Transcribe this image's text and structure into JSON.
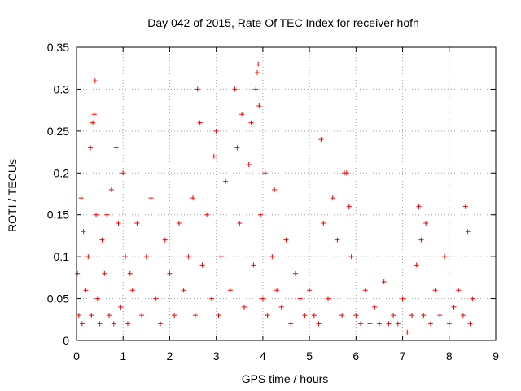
{
  "chart_data": {
    "type": "scatter",
    "title": "Day 042 of 2015, Rate Of TEC Index for receiver hofn",
    "xlabel": "GPS time / hours",
    "ylabel": "ROTI / TECUs",
    "xlim": [
      0,
      9
    ],
    "ylim": [
      0,
      0.35
    ],
    "xticks": [
      "0",
      "1",
      "2",
      "3",
      "4",
      "5",
      "6",
      "7",
      "8",
      "9"
    ],
    "yticks": [
      "0",
      "0.05",
      "0.1",
      "0.15",
      "0.2",
      "0.25",
      "0.3",
      "0.35"
    ],
    "grid": true,
    "marker": "+",
    "color": "#ff0000",
    "series": [
      {
        "name": "ROTI",
        "x": [
          0.02,
          0.05,
          0.1,
          0.12,
          0.15,
          0.2,
          0.25,
          0.3,
          0.32,
          0.35,
          0.38,
          0.4,
          0.42,
          0.45,
          0.5,
          0.55,
          0.6,
          0.65,
          0.7,
          0.75,
          0.8,
          0.85,
          0.9,
          0.95,
          1.0,
          1.05,
          1.1,
          1.15,
          1.2,
          1.3,
          1.4,
          1.5,
          1.6,
          1.7,
          1.8,
          1.9,
          2.0,
          2.1,
          2.2,
          2.3,
          2.4,
          2.5,
          2.55,
          2.6,
          2.65,
          2.7,
          2.8,
          2.9,
          2.95,
          3.0,
          3.05,
          3.1,
          3.2,
          3.3,
          3.4,
          3.45,
          3.5,
          3.55,
          3.6,
          3.7,
          3.75,
          3.8,
          3.85,
          3.88,
          3.9,
          3.92,
          3.95,
          4.0,
          4.05,
          4.1,
          4.2,
          4.25,
          4.3,
          4.4,
          4.5,
          4.6,
          4.7,
          4.8,
          4.9,
          5.0,
          5.1,
          5.2,
          5.25,
          5.3,
          5.4,
          5.5,
          5.6,
          5.7,
          5.75,
          5.8,
          5.85,
          5.9,
          6.0,
          6.1,
          6.2,
          6.3,
          6.4,
          6.5,
          6.6,
          6.7,
          6.8,
          6.9,
          7.0,
          7.1,
          7.2,
          7.3,
          7.35,
          7.4,
          7.45,
          7.5,
          7.6,
          7.7,
          7.8,
          7.9,
          8.0,
          8.1,
          8.2,
          8.3,
          8.35,
          8.4,
          8.45,
          8.5
        ],
        "y": [
          0.08,
          0.03,
          0.17,
          0.02,
          0.13,
          0.06,
          0.1,
          0.23,
          0.03,
          0.26,
          0.27,
          0.31,
          0.15,
          0.05,
          0.02,
          0.12,
          0.08,
          0.15,
          0.03,
          0.18,
          0.02,
          0.23,
          0.14,
          0.04,
          0.2,
          0.1,
          0.02,
          0.08,
          0.06,
          0.14,
          0.03,
          0.1,
          0.17,
          0.05,
          0.02,
          0.12,
          0.08,
          0.03,
          0.14,
          0.06,
          0.1,
          0.17,
          0.03,
          0.3,
          0.26,
          0.09,
          0.15,
          0.05,
          0.22,
          0.25,
          0.03,
          0.1,
          0.19,
          0.06,
          0.3,
          0.23,
          0.14,
          0.27,
          0.04,
          0.21,
          0.26,
          0.09,
          0.3,
          0.32,
          0.33,
          0.28,
          0.15,
          0.05,
          0.2,
          0.03,
          0.1,
          0.18,
          0.06,
          0.04,
          0.12,
          0.02,
          0.08,
          0.05,
          0.03,
          0.06,
          0.03,
          0.02,
          0.24,
          0.14,
          0.05,
          0.17,
          0.12,
          0.03,
          0.2,
          0.2,
          0.16,
          0.1,
          0.03,
          0.02,
          0.06,
          0.02,
          0.04,
          0.02,
          0.07,
          0.02,
          0.03,
          0.02,
          0.05,
          0.01,
          0.03,
          0.09,
          0.16,
          0.12,
          0.03,
          0.14,
          0.02,
          0.06,
          0.03,
          0.1,
          0.02,
          0.04,
          0.06,
          0.03,
          0.16,
          0.13,
          0.02,
          0.05
        ]
      }
    ]
  }
}
